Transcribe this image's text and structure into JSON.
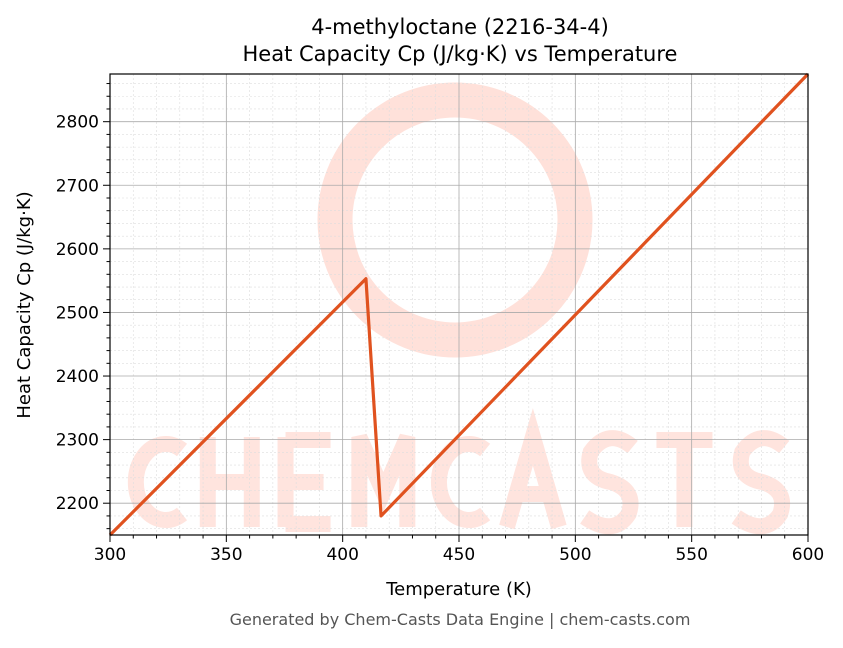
{
  "chart_data": {
    "type": "line",
    "title": "4-methyloctane (2216-34-4)",
    "subtitle": "Heat Capacity Cp (J/kg·K) vs Temperature",
    "xlabel": "Temperature (K)",
    "ylabel": "Heat Capacity Cp (J/kg·K)",
    "xlim": [
      300,
      600
    ],
    "ylim": [
      2150,
      2875
    ],
    "xticks": [
      300,
      350,
      400,
      450,
      500,
      550,
      600
    ],
    "yticks": [
      2200,
      2300,
      2400,
      2500,
      2600,
      2700,
      2800
    ],
    "grid": true,
    "series": [
      {
        "x": [
          300,
          410,
          416.5,
          600
        ],
        "y": [
          2150,
          2553,
          2180,
          2875
        ],
        "color": "#e0521f"
      }
    ]
  },
  "watermark": "CHEMCASTS",
  "footer": "Generated by Chem-Casts Data Engine | chem-casts.com"
}
